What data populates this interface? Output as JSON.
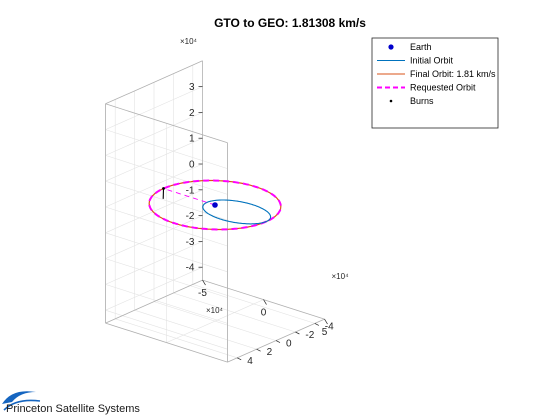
{
  "chart_data": {
    "type": "line",
    "projection": "3d",
    "title": "GTO to GEO: 1.81308 km/s",
    "axes": {
      "x": {
        "multiplier": "×10⁴",
        "ticks": [
          -5,
          0,
          5
        ],
        "range": [
          -5,
          5
        ]
      },
      "y": {
        "multiplier": "×10⁴",
        "ticks": [
          -4,
          -2,
          0,
          2,
          4
        ],
        "range": [
          -5,
          5
        ]
      },
      "z": {
        "multiplier": "×10⁴",
        "ticks": [
          -4,
          -3,
          -2,
          -1,
          0,
          1,
          2,
          3
        ],
        "range": [
          -4.5,
          4
        ]
      }
    },
    "grid": true,
    "box": true,
    "legend_position": "top-right",
    "series": [
      {
        "name": "Earth",
        "kind": "marker",
        "color": "#0000cc",
        "points": [
          [
            0,
            0,
            0
          ]
        ]
      },
      {
        "name": "Initial Orbit",
        "kind": "ellipse",
        "color": "#0072bd",
        "perigee": 0.66,
        "apogee": 4.22,
        "apse_direction": [
          -1,
          0,
          0
        ]
      },
      {
        "name": "Final Orbit: 1.81 km/s",
        "kind": "circle",
        "color": "#d95319",
        "radius": 4.22
      },
      {
        "name": "Requested Orbit",
        "kind": "circle",
        "color": "#ff00ff",
        "style": "dashed",
        "radius": 4.22
      },
      {
        "name": "Burns",
        "kind": "marker",
        "color": "#000000",
        "points": [
          [
            -4.22,
            0,
            0
          ]
        ]
      }
    ],
    "apse_line": {
      "color": "#ff00ff",
      "style": "dashed",
      "from": [
        0,
        0,
        0
      ],
      "to": [
        -4.22,
        0,
        0
      ]
    },
    "burn_vector": {
      "color": "#000000",
      "from": [
        -4.22,
        0,
        0
      ],
      "to": [
        -5.2,
        -1.2,
        -0.75
      ]
    }
  },
  "watermark": {
    "label": "Princeton Satellite Systems"
  }
}
